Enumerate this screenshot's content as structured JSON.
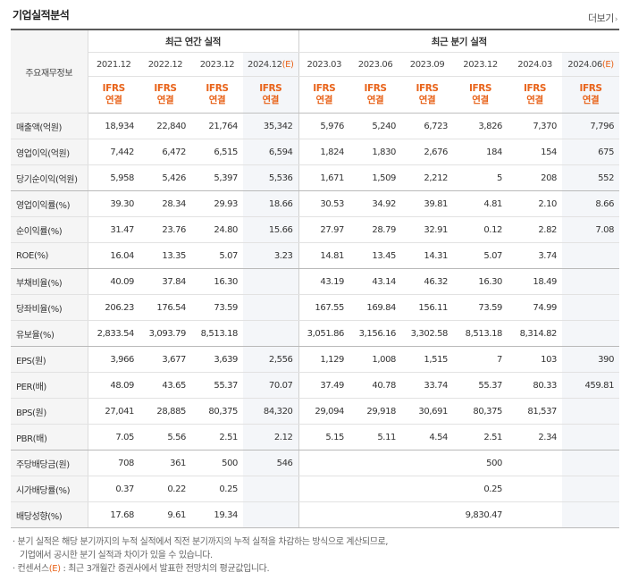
{
  "title": "기업실적분석",
  "more": "더보기",
  "header": {
    "row_label": "주요재무정보",
    "annual_group": "최근 연간 실적",
    "quarter_group": "최근 분기 실적",
    "annual_periods": [
      {
        "label": "2021.12",
        "estimate": false
      },
      {
        "label": "2022.12",
        "estimate": false
      },
      {
        "label": "2023.12",
        "estimate": false
      },
      {
        "label": "2024.12",
        "estimate": true
      }
    ],
    "quarter_periods": [
      {
        "label": "2023.03",
        "estimate": false
      },
      {
        "label": "2023.06",
        "estimate": false
      },
      {
        "label": "2023.09",
        "estimate": false
      },
      {
        "label": "2023.12",
        "estimate": false
      },
      {
        "label": "2024.03",
        "estimate": false
      },
      {
        "label": "2024.06",
        "estimate": true
      }
    ],
    "est_mark": "(E)",
    "ifrs_line1": "IFRS",
    "ifrs_line2": "연결"
  },
  "rows": [
    {
      "label": "매출액(억원)",
      "group_end": false,
      "values": [
        "18,934",
        "22,840",
        "21,764",
        "35,342",
        "5,976",
        "5,240",
        "6,723",
        "3,826",
        "7,370",
        "7,796"
      ]
    },
    {
      "label": "영업이익(억원)",
      "group_end": false,
      "values": [
        "7,442",
        "6,472",
        "6,515",
        "6,594",
        "1,824",
        "1,830",
        "2,676",
        "184",
        "154",
        "675"
      ]
    },
    {
      "label": "당기순이익(억원)",
      "group_end": true,
      "values": [
        "5,958",
        "5,426",
        "5,397",
        "5,536",
        "1,671",
        "1,509",
        "2,212",
        "5",
        "208",
        "552"
      ]
    },
    {
      "label": "영업이익률(%)",
      "group_end": false,
      "values": [
        "39.30",
        "28.34",
        "29.93",
        "18.66",
        "30.53",
        "34.92",
        "39.81",
        "4.81",
        "2.10",
        "8.66"
      ]
    },
    {
      "label": "순이익률(%)",
      "group_end": false,
      "values": [
        "31.47",
        "23.76",
        "24.80",
        "15.66",
        "27.97",
        "28.79",
        "32.91",
        "0.12",
        "2.82",
        "7.08"
      ]
    },
    {
      "label": "ROE(%)",
      "group_end": true,
      "values": [
        "16.04",
        "13.35",
        "5.07",
        "3.23",
        "14.81",
        "13.45",
        "14.31",
        "5.07",
        "3.74",
        ""
      ]
    },
    {
      "label": "부채비율(%)",
      "group_end": false,
      "values": [
        "40.09",
        "37.84",
        "16.30",
        "",
        "43.19",
        "43.14",
        "46.32",
        "16.30",
        "18.49",
        ""
      ]
    },
    {
      "label": "당좌비율(%)",
      "group_end": false,
      "values": [
        "206.23",
        "176.54",
        "73.59",
        "",
        "167.55",
        "169.84",
        "156.11",
        "73.59",
        "74.99",
        ""
      ]
    },
    {
      "label": "유보율(%)",
      "group_end": true,
      "values": [
        "2,833.54",
        "3,093.79",
        "8,513.18",
        "",
        "3,051.86",
        "3,156.16",
        "3,302.58",
        "8,513.18",
        "8,314.82",
        ""
      ]
    },
    {
      "label": "EPS(원)",
      "group_end": false,
      "values": [
        "3,966",
        "3,677",
        "3,639",
        "2,556",
        "1,129",
        "1,008",
        "1,515",
        "7",
        "103",
        "390"
      ]
    },
    {
      "label": "PER(배)",
      "group_end": false,
      "values": [
        "48.09",
        "43.65",
        "55.37",
        "70.07",
        "37.49",
        "40.78",
        "33.74",
        "55.37",
        "80.33",
        "459.81"
      ]
    },
    {
      "label": "BPS(원)",
      "group_end": false,
      "values": [
        "27,041",
        "28,885",
        "80,375",
        "84,320",
        "29,094",
        "29,918",
        "30,691",
        "80,375",
        "81,537",
        ""
      ]
    },
    {
      "label": "PBR(배)",
      "group_end": true,
      "values": [
        "7.05",
        "5.56",
        "2.51",
        "2.12",
        "5.15",
        "5.11",
        "4.54",
        "2.51",
        "2.34",
        ""
      ]
    },
    {
      "label": "주당배당금(원)",
      "group_end": false,
      "values": [
        "708",
        "361",
        "500",
        "546",
        "",
        "",
        "",
        "500",
        "",
        ""
      ]
    },
    {
      "label": "시가배당률(%)",
      "group_end": false,
      "values": [
        "0.37",
        "0.22",
        "0.25",
        "",
        "",
        "",
        "",
        "0.25",
        "",
        ""
      ]
    },
    {
      "label": "배당성향(%)",
      "group_end": true,
      "values": [
        "17.68",
        "9.61",
        "19.34",
        "",
        "",
        "",
        "",
        "9,830.47",
        "",
        ""
      ]
    }
  ],
  "notes": {
    "line1": "· 분기 실적은 해당 분기까지의 누적 실적에서 직전 분기까지의 누적 실적을 차감하는 방식으로 계산되므로,",
    "line2": "기업에서 공시한 분기 실적과 차이가 있을 수 있습니다.",
    "line3_prefix": "· 컨센서스",
    "line3_mark": "(E)",
    "line3_suffix": " : 최근 3개월간 증권사에서 발표한 전망치의 평균값입니다."
  }
}
